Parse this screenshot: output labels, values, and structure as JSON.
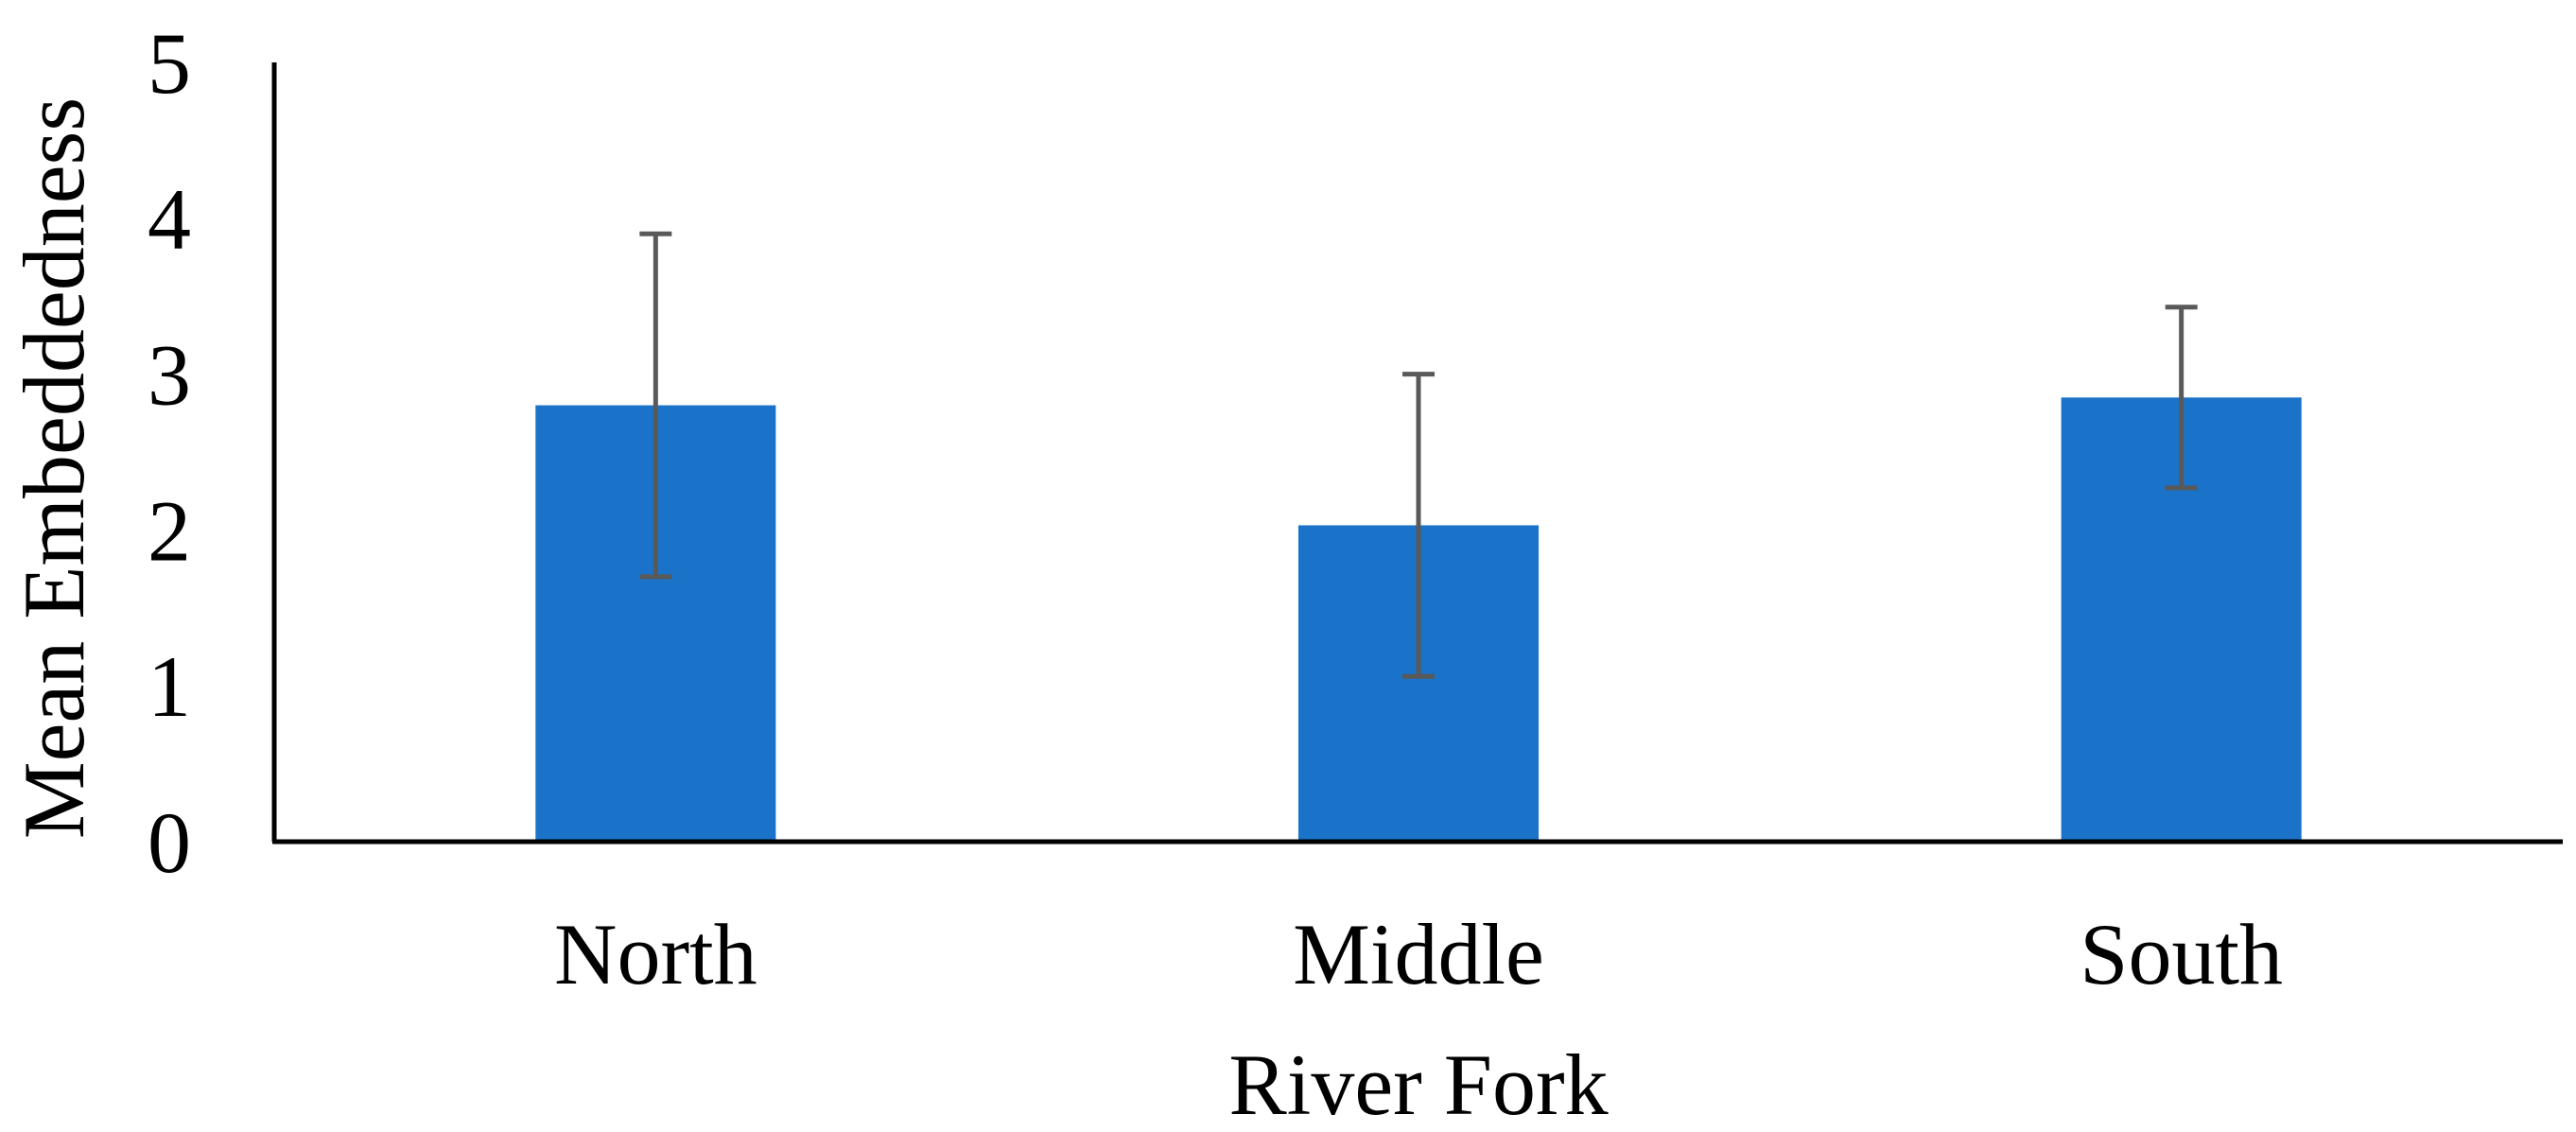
{
  "chart_data": {
    "type": "bar",
    "categories": [
      "North",
      "Middle",
      "South"
    ],
    "values": [
      2.8,
      2.03,
      2.85
    ],
    "error": [
      1.1,
      0.97,
      0.58
    ],
    "xlabel": "River Fork",
    "ylabel": "Mean Embeddedness",
    "ylim": [
      0,
      5
    ],
    "yticks": [
      "0",
      "1",
      "2",
      "3",
      "4",
      "5"
    ],
    "grid": false,
    "legend": "none",
    "colors": {
      "bar": "#1a73c9",
      "error_bar": "#595959",
      "axis": "#000000"
    }
  }
}
